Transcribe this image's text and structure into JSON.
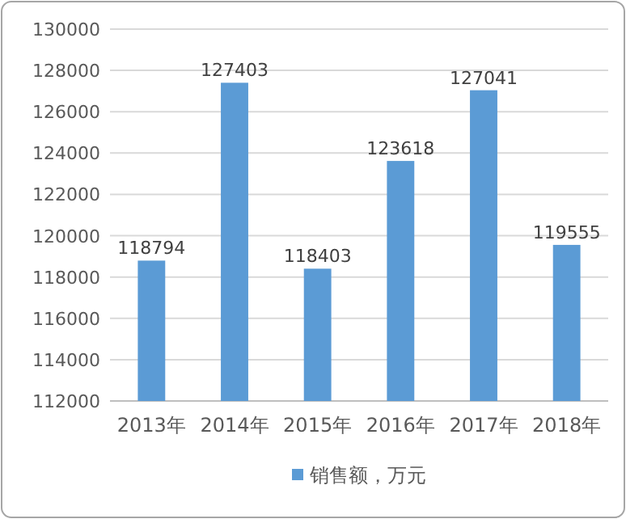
{
  "chart_data": {
    "type": "bar",
    "categories": [
      "2013年",
      "2014年",
      "2015年",
      "2016年",
      "2017年",
      "2018年"
    ],
    "series": [
      {
        "name": "销售额，万元",
        "color": "#5b9bd5",
        "values": [
          118794,
          127403,
          118403,
          123618,
          127041,
          119555
        ]
      }
    ],
    "ylim": [
      112000,
      130000
    ],
    "yticks": [
      112000,
      114000,
      116000,
      118000,
      120000,
      122000,
      124000,
      126000,
      128000,
      130000
    ],
    "grid": "y",
    "legend": "bottom",
    "data_labels": true
  }
}
